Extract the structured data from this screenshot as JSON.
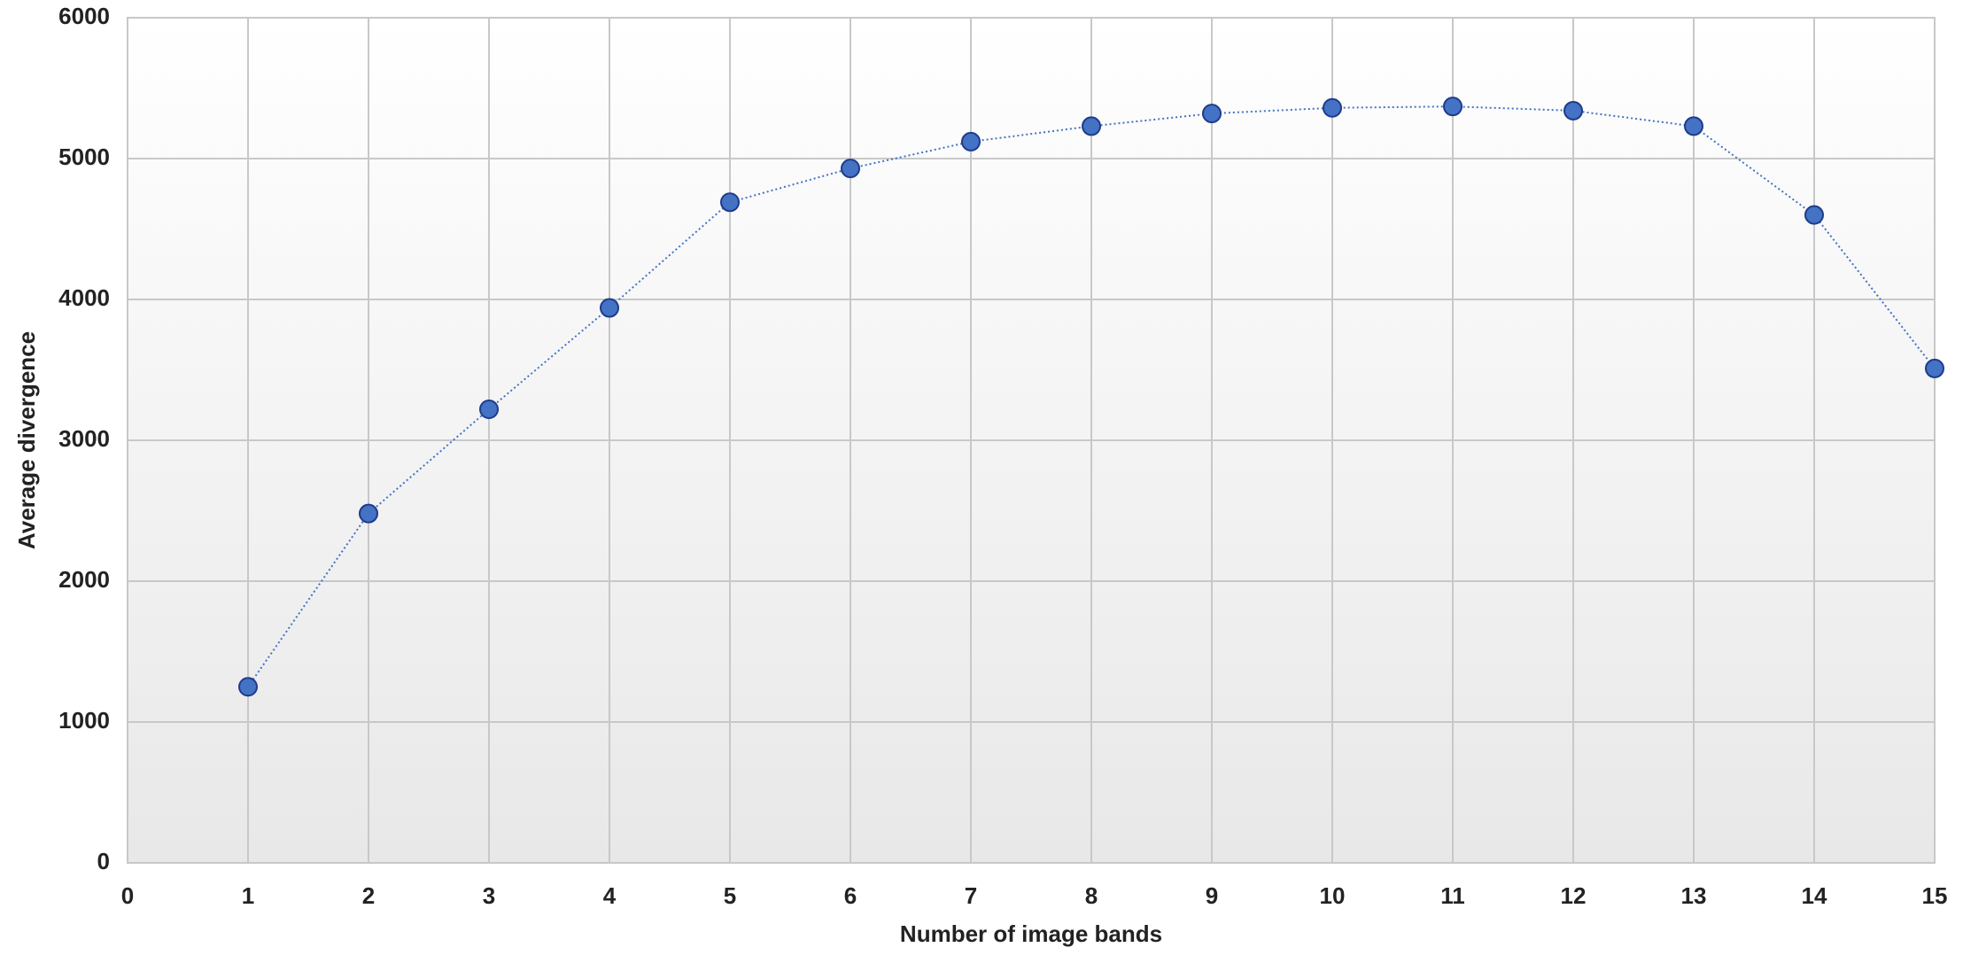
{
  "chart_data": {
    "type": "line",
    "x_label": "Number of image bands",
    "y_label": "Average divergence",
    "x": [
      1,
      2,
      3,
      4,
      5,
      6,
      7,
      8,
      9,
      10,
      11,
      12,
      13,
      14,
      15
    ],
    "series": [
      {
        "color": "#4472c4",
        "values": [
          1250,
          2480,
          3220,
          3940,
          4690,
          4930,
          5120,
          5230,
          5320,
          5360,
          5370,
          5340,
          5230,
          4600,
          3510
        ]
      }
    ],
    "xlim": [
      0,
      15
    ],
    "xticks": [
      0,
      1,
      2,
      3,
      4,
      5,
      6,
      7,
      8,
      9,
      10,
      11,
      12,
      13,
      14,
      15
    ],
    "ylim": [
      0,
      6000
    ],
    "yticks": [
      0,
      1000,
      2000,
      3000,
      4000,
      5000,
      6000
    ],
    "grid": true
  }
}
